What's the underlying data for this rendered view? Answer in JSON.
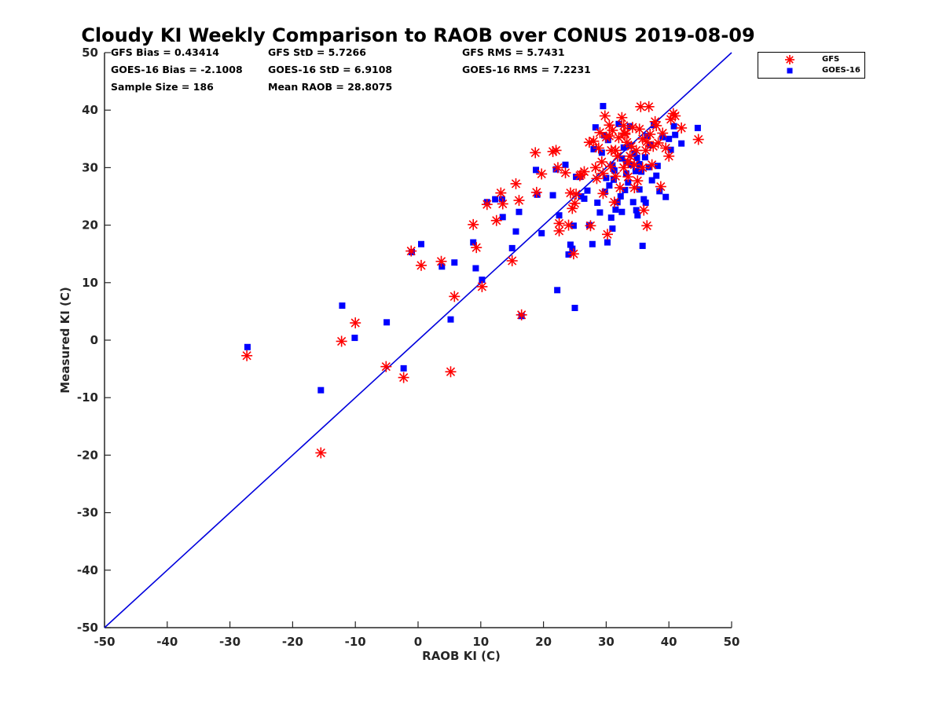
{
  "stats": {
    "gfs_bias": "GFS Bias = 0.43414",
    "goes_bias": "GOES-16 Bias = -2.1008",
    "sample_size": "Sample Size = 186",
    "gfs_std": "GFS StD = 5.7266",
    "goes_std": "GOES-16 StD = 6.9108",
    "mean_raob": "Mean RAOB = 28.8075",
    "gfs_rms": "GFS RMS = 5.7431",
    "goes_rms": "GOES-16 RMS = 7.2231"
  },
  "colors": {
    "gfs": "#ff0000",
    "goes": "#0000ff",
    "line": "#0000dd"
  },
  "chart_data": {
    "type": "scatter",
    "title": "Cloudy KI Weekly Comparison to RAOB over CONUS 2019-08-09",
    "xlabel": "RAOB KI (C)",
    "ylabel": "Measured KI (C)",
    "xlim": [
      -50,
      50
    ],
    "ylim": [
      -50,
      50
    ],
    "xticks": [
      "-50",
      "-40",
      "-30",
      "-20",
      "-10",
      "0",
      "10",
      "20",
      "30",
      "40",
      "50"
    ],
    "yticks": [
      "-50",
      "-40",
      "-30",
      "-20",
      "-10",
      "0",
      "10",
      "20",
      "30",
      "40",
      "50"
    ],
    "reference_line": "1:1",
    "legend": {
      "position": "outside top-right",
      "entries": [
        "GFS",
        "GOES-16"
      ]
    },
    "series": [
      {
        "name": "GFS",
        "marker": "asterisk",
        "x": [
          -27.3,
          -15.5,
          -12.2,
          -10.0,
          -5.1,
          -2.3,
          -1.1,
          0.5,
          3.7,
          5.2,
          5.8,
          8.8,
          9.3,
          10.2,
          11.0,
          12.5,
          13.2,
          13.5,
          15.0,
          15.6,
          16.1,
          16.5,
          18.7,
          18.9,
          19.7,
          21.5,
          22.0,
          22.3,
          22.5,
          22.5,
          23.5,
          24.0,
          24.3,
          24.6,
          24.8,
          25.0,
          25.2,
          25.8,
          26.0,
          26.5,
          27.3,
          27.5,
          28.0,
          28.3,
          28.5,
          28.8,
          29.0,
          29.3,
          29.5,
          29.8,
          30.0,
          30.2,
          30.5,
          30.7,
          31.0,
          31.3,
          31.5,
          31.8,
          32.0,
          32.2,
          32.5,
          32.8,
          33.0,
          33.3,
          33.5,
          33.8,
          34.0,
          34.2,
          34.5,
          34.8,
          35.0,
          35.3,
          35.5,
          35.8,
          36.0,
          36.3,
          36.5,
          36.8,
          37.0,
          37.3,
          37.5,
          37.8,
          38.0,
          38.3,
          38.7,
          39.0,
          39.5,
          40.0,
          40.3,
          40.7,
          41.0,
          42.0,
          44.7,
          30.5,
          31.5,
          33.5,
          34.5,
          35.8,
          36.5,
          32.8,
          29.5,
          30.8,
          33.0
        ],
        "y": [
          -2.7,
          -19.6,
          -0.2,
          3.0,
          -4.6,
          -6.5,
          15.5,
          13.0,
          13.7,
          -5.5,
          7.6,
          20.1,
          16.1,
          9.3,
          23.6,
          20.8,
          25.6,
          23.7,
          13.8,
          27.2,
          24.3,
          4.4,
          32.6,
          25.7,
          28.9,
          32.8,
          33.0,
          30.0,
          20.3,
          19.0,
          29.1,
          20.0,
          25.6,
          22.9,
          15.0,
          23.8,
          25.4,
          28.6,
          28.8,
          29.3,
          34.4,
          19.9,
          34.6,
          30.0,
          28.1,
          33.4,
          36.1,
          31.0,
          29.0,
          39.0,
          35.3,
          18.4,
          37.4,
          30.2,
          36.5,
          24.0,
          33.0,
          32.0,
          35.2,
          26.5,
          38.7,
          30.0,
          36.0,
          34.4,
          28.4,
          32.0,
          33.7,
          37.0,
          30.5,
          33.0,
          27.7,
          36.7,
          40.6,
          35.0,
          22.6,
          33.0,
          19.9,
          40.6,
          35.8,
          30.5,
          33.7,
          38.0,
          37.3,
          34.3,
          26.7,
          36.0,
          33.4,
          32.0,
          38.4,
          39.4,
          39.0,
          36.9,
          34.9,
          35.5,
          28.5,
          31.0,
          26.5,
          30.0,
          34.5,
          37.3,
          25.5,
          33.0,
          35.8
        ]
      },
      {
        "name": "GOES-16",
        "marker": "square",
        "x": [
          -27.2,
          -15.5,
          -12.1,
          -10.1,
          -5.0,
          -2.3,
          -1.0,
          0.5,
          3.8,
          5.2,
          5.8,
          8.8,
          9.2,
          10.2,
          11.0,
          12.3,
          13.4,
          13.5,
          15.0,
          15.6,
          16.1,
          16.5,
          18.8,
          19.0,
          19.7,
          21.5,
          22.0,
          22.2,
          22.5,
          23.5,
          24.0,
          24.3,
          24.6,
          24.8,
          25.0,
          25.2,
          25.8,
          26.0,
          26.5,
          27.0,
          27.3,
          27.8,
          28.0,
          28.3,
          28.6,
          29.0,
          29.3,
          29.5,
          29.8,
          30.0,
          30.2,
          30.5,
          30.8,
          31.0,
          31.2,
          31.5,
          31.8,
          32.0,
          32.3,
          32.5,
          32.8,
          33.0,
          33.2,
          33.5,
          33.8,
          34.0,
          34.3,
          34.5,
          34.8,
          35.0,
          35.3,
          35.6,
          35.8,
          36.0,
          36.3,
          36.5,
          36.8,
          37.0,
          37.3,
          37.6,
          38.0,
          38.2,
          38.5,
          39.0,
          39.5,
          40.0,
          40.3,
          40.8,
          41.0,
          42.0,
          44.6,
          30.3,
          31.3,
          32.5,
          33.7,
          34.7,
          35.3,
          36.2,
          29.7,
          31.0,
          33.2,
          34.9
        ],
        "y": [
          -1.2,
          -8.7,
          6.0,
          0.4,
          3.1,
          -4.9,
          15.3,
          16.7,
          12.8,
          3.6,
          13.5,
          17.0,
          12.5,
          10.5,
          24.0,
          24.5,
          24.5,
          21.4,
          16.0,
          18.9,
          22.3,
          4.2,
          29.6,
          25.3,
          18.6,
          25.2,
          29.7,
          8.7,
          21.7,
          30.5,
          14.9,
          16.6,
          15.9,
          19.9,
          5.6,
          28.4,
          28.4,
          25.0,
          24.6,
          26.0,
          20.0,
          16.7,
          33.2,
          37.0,
          23.9,
          22.2,
          32.6,
          40.7,
          25.8,
          28.2,
          17.0,
          26.9,
          21.3,
          19.4,
          27.9,
          22.7,
          24.0,
          37.6,
          25.0,
          22.3,
          33.5,
          26.1,
          29.0,
          27.4,
          37.2,
          30.5,
          24.0,
          32.4,
          22.6,
          21.7,
          26.2,
          29.3,
          16.4,
          24.5,
          23.9,
          35.5,
          30.1,
          33.9,
          27.8,
          37.4,
          28.6,
          30.3,
          25.9,
          35.3,
          24.9,
          35.0,
          33.1,
          37.2,
          35.7,
          34.2,
          36.9,
          34.8,
          29.5,
          31.6,
          33.8,
          29.4,
          30.6,
          31.8,
          35.6,
          30.4,
          30.9,
          31.7
        ]
      }
    ]
  }
}
